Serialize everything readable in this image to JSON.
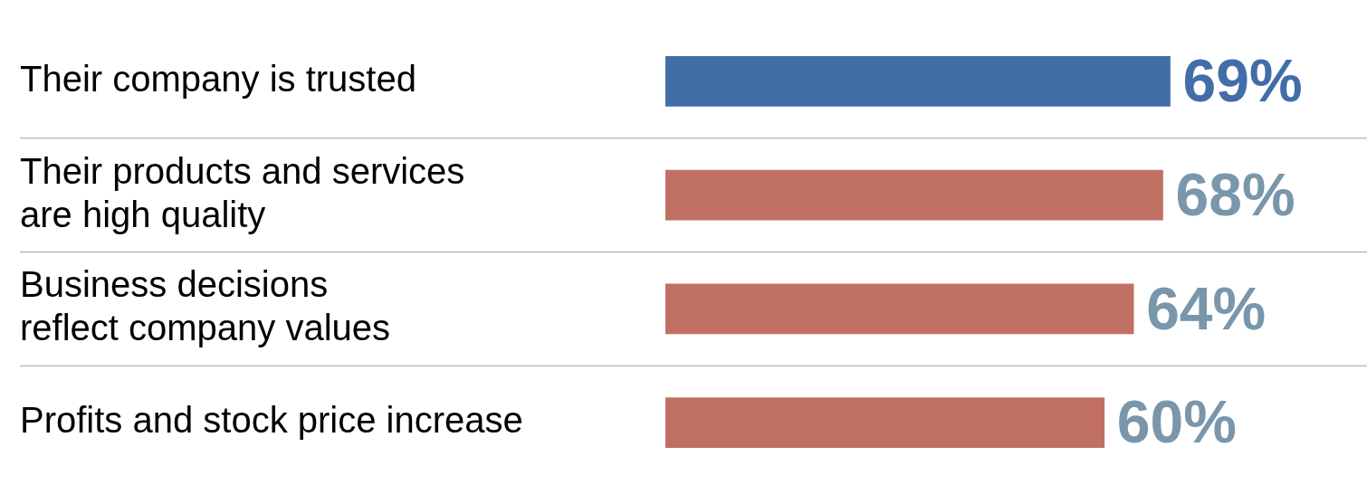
{
  "chart_data": {
    "type": "bar",
    "orientation": "horizontal",
    "categories": [
      "Their company is trusted",
      "Their products and services\nare high quality",
      "Business decisions\nreflect company values",
      "Profits and stock price increase"
    ],
    "values": [
      69,
      68,
      64,
      60
    ],
    "colors": [
      "#426ea8",
      "#c07062",
      "#c07062",
      "#c07062"
    ],
    "value_labels": [
      "69%",
      "68%",
      "64%",
      "60%"
    ],
    "grid": "y"
  }
}
